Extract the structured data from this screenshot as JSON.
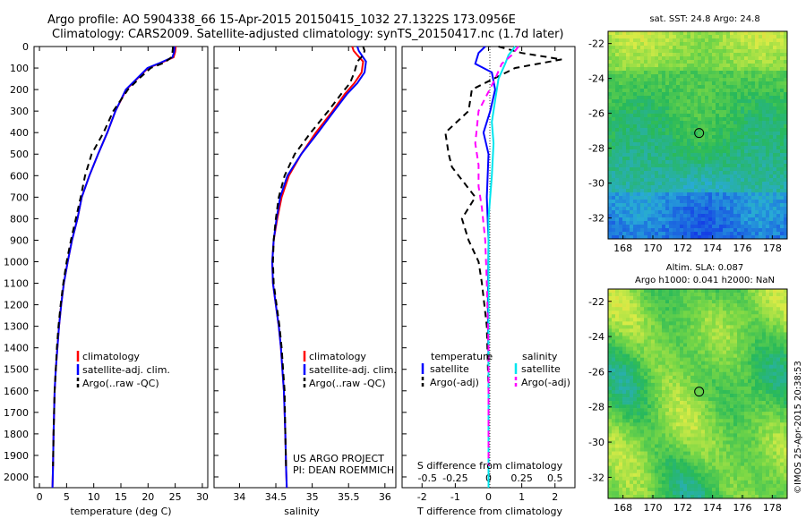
{
  "header": {
    "line1": "Argo profile: AO 5904338_66 15-Apr-2015 20150415_1032 27.1322S 173.0956E",
    "line2": "Climatology: CARS2009. Satellite-adjusted climatology: synTS_20150417.nc (1.7d later)"
  },
  "chart_data": [
    {
      "name": "temperature-panel",
      "type": "line",
      "xlabel": "temperature (deg C)",
      "ylabel": "",
      "xlim": [
        -1,
        31
      ],
      "ylim": [
        2050,
        0
      ],
      "xticks": [
        0,
        5,
        10,
        15,
        20,
        25,
        30
      ],
      "yticks": [
        0,
        100,
        200,
        300,
        400,
        500,
        600,
        700,
        800,
        900,
        1000,
        1100,
        1200,
        1300,
        1400,
        1500,
        1600,
        1700,
        1800,
        1900,
        2000
      ],
      "legend": [
        "climatology",
        "satellite-adj. clim.",
        "Argo(..raw -QC)"
      ],
      "series": [
        {
          "name": "climatology",
          "color": "#ff0000",
          "dash": "",
          "x": [
            25.1,
            25.0,
            24.7,
            22.5,
            20.0,
            18.0,
            16.0,
            14.0,
            12.5,
            10.8,
            9.2,
            7.8,
            7.0,
            6.0,
            5.2,
            4.5,
            4.0,
            3.6,
            3.3,
            3.0,
            2.8,
            2.6,
            2.5,
            2.4
          ],
          "y": [
            0,
            25,
            50,
            75,
            100,
            150,
            200,
            300,
            400,
            500,
            600,
            700,
            800,
            900,
            1000,
            1100,
            1200,
            1300,
            1400,
            1500,
            1600,
            1800,
            1950,
            2050
          ]
        },
        {
          "name": "satellite-adj. clim.",
          "color": "#0000ff",
          "dash": "",
          "x": [
            24.9,
            24.8,
            24.5,
            22.3,
            19.9,
            17.9,
            15.9,
            14.0,
            12.5,
            10.8,
            9.2,
            7.8,
            7.0,
            6.0,
            5.2,
            4.5,
            4.0,
            3.6,
            3.3,
            3.0,
            2.8,
            2.6,
            2.5,
            2.4
          ],
          "y": [
            0,
            25,
            50,
            75,
            100,
            150,
            200,
            300,
            400,
            500,
            600,
            700,
            800,
            900,
            1000,
            1100,
            1200,
            1300,
            1400,
            1500,
            1600,
            1800,
            1950,
            2050
          ]
        },
        {
          "name": "Argo(..raw -QC)",
          "color": "#000000",
          "dash": "7,5",
          "x": [
            24.6,
            24.5,
            24.3,
            23.0,
            20.5,
            18.3,
            16.3,
            13.6,
            11.8,
            9.6,
            8.4,
            7.6,
            6.7,
            5.8,
            5.0,
            4.4,
            3.9,
            3.5,
            3.2,
            3.0,
            2.8,
            2.6,
            2.5
          ],
          "y": [
            0,
            25,
            50,
            75,
            100,
            150,
            200,
            300,
            400,
            500,
            600,
            700,
            800,
            900,
            1000,
            1100,
            1200,
            1300,
            1400,
            1500,
            1600,
            1800,
            1950
          ]
        }
      ]
    },
    {
      "name": "salinity-panel",
      "type": "line",
      "xlabel": "salinity",
      "ylabel": "",
      "xlim": [
        33.65,
        36.15
      ],
      "ylim": [
        2050,
        0
      ],
      "xticks": [
        34,
        34.5,
        35,
        35.5,
        36
      ],
      "legend": [
        "climatology",
        "satellite-adj. clim.",
        "Argo(..raw -QC)"
      ],
      "series": [
        {
          "name": "climatology",
          "color": "#ff0000",
          "dash": "",
          "x": [
            35.55,
            35.57,
            35.62,
            35.7,
            35.68,
            35.58,
            35.45,
            35.28,
            35.05,
            34.85,
            34.68,
            34.58,
            34.52,
            34.47,
            34.45,
            34.46,
            34.5,
            34.54,
            34.57,
            34.59,
            34.61,
            34.63,
            34.64,
            34.65
          ],
          "y": [
            0,
            20,
            40,
            70,
            120,
            170,
            220,
            300,
            400,
            500,
            600,
            700,
            800,
            900,
            1000,
            1100,
            1200,
            1300,
            1400,
            1500,
            1600,
            1800,
            1950,
            2050
          ]
        },
        {
          "name": "satellite-adj. clim.",
          "color": "#0000ff",
          "dash": "",
          "x": [
            35.62,
            35.64,
            35.68,
            35.74,
            35.72,
            35.62,
            35.48,
            35.3,
            35.08,
            34.85,
            34.66,
            34.56,
            34.51,
            34.47,
            34.45,
            34.46,
            34.5,
            34.54,
            34.57,
            34.59,
            34.61,
            34.63,
            34.64,
            34.65
          ],
          "y": [
            0,
            20,
            40,
            70,
            120,
            170,
            220,
            300,
            400,
            500,
            600,
            700,
            800,
            900,
            1000,
            1100,
            1200,
            1300,
            1400,
            1500,
            1600,
            1800,
            1950,
            2050
          ]
        },
        {
          "name": "Argo(..raw -QC)",
          "color": "#000000",
          "dash": "7,5",
          "x": [
            35.7,
            35.72,
            35.7,
            35.62,
            35.58,
            35.52,
            35.4,
            35.22,
            34.98,
            34.76,
            34.62,
            34.54,
            34.5,
            34.47,
            34.46,
            34.47,
            34.51,
            34.55,
            34.58,
            34.6,
            34.62,
            34.63,
            34.64
          ],
          "y": [
            0,
            20,
            40,
            70,
            120,
            170,
            220,
            300,
            400,
            500,
            600,
            700,
            800,
            900,
            1000,
            1100,
            1200,
            1300,
            1400,
            1500,
            1600,
            1800,
            1950
          ]
        }
      ],
      "annotation_line1": "US ARGO PROJECT",
      "annotation_line2": "PI: DEAN ROEMMICH"
    },
    {
      "name": "difference-panel",
      "type": "line",
      "xlabel": "T difference from climatology",
      "xlabel_top": "S difference from climatology",
      "xlim": [
        -2.6,
        2.6
      ],
      "ylim": [
        2050,
        0
      ],
      "xticks": [
        -2,
        -1,
        0,
        1,
        2
      ],
      "sticks_labels": [
        "-0.5",
        "-0.25",
        "0",
        "0.25",
        "0.5"
      ],
      "sticks_values": [
        -2,
        -1,
        0,
        1,
        2
      ],
      "legend_temperature_title": "temperature",
      "legend_salinity_title": "salinity",
      "legend_temperature": [
        "satellite",
        "Argo(-adj)"
      ],
      "legend_salinity": [
        "satellite",
        "Argo(-adj)"
      ],
      "series": [
        {
          "name": "T satellite",
          "color": "#0000ff",
          "dash": "",
          "x": [
            -0.1,
            -0.3,
            -0.4,
            0.1,
            0.2,
            0.05,
            -0.15,
            0.0,
            -0.05,
            0.0,
            -0.02,
            0.0,
            0.0,
            0.0
          ],
          "y": [
            0,
            30,
            80,
            120,
            200,
            300,
            400,
            500,
            700,
            900,
            1200,
            1500,
            1800,
            2050
          ]
        },
        {
          "name": "T Argo(-adj)",
          "color": "#000000",
          "dash": "7,5",
          "x": [
            0.3,
            1.0,
            2.2,
            0.8,
            -0.5,
            -0.6,
            -1.3,
            -1.2,
            -1.1,
            -0.9,
            -0.4,
            -0.8,
            -0.6,
            -0.3,
            -0.2,
            -0.05,
            0.0,
            0.0
          ],
          "y": [
            0,
            30,
            60,
            100,
            200,
            300,
            400,
            500,
            560,
            600,
            700,
            800,
            900,
            1000,
            1100,
            1300,
            1600,
            1950
          ]
        },
        {
          "name": "S satellite",
          "color": "#00e5ee",
          "dash": "",
          "x": [
            0.8,
            0.6,
            0.5,
            0.3,
            0.2,
            0.1,
            0.15,
            0.1,
            0.0,
            0.0,
            0.0,
            0.0
          ],
          "y": [
            0,
            40,
            80,
            150,
            250,
            350,
            450,
            600,
            800,
            1100,
            1500,
            2050
          ]
        },
        {
          "name": "S Argo(-adj)",
          "color": "#ff00ff",
          "dash": "7,5",
          "x": [
            0.9,
            0.7,
            0.4,
            0.2,
            -0.3,
            -0.4,
            -0.3,
            -0.3,
            -0.2,
            -0.1,
            -0.05,
            0.0,
            0.0
          ],
          "y": [
            0,
            40,
            80,
            150,
            300,
            450,
            550,
            650,
            750,
            900,
            1100,
            1400,
            1950
          ]
        }
      ]
    },
    {
      "name": "sst-map",
      "type": "heatmap",
      "title": "sat. SST: 24.8 Argo: 24.8",
      "xticks": [
        "168",
        "170",
        "172",
        "174",
        "176",
        "178"
      ],
      "yticks": [
        "-22",
        "-24",
        "-26",
        "-28",
        "-30",
        "-32"
      ],
      "marker_lon": 173.1,
      "marker_lat": -27.13
    },
    {
      "name": "sla-map",
      "type": "heatmap",
      "title_line1": "Altim. SLA: 0.087",
      "title_line2": "Argo h1000: 0.041 h2000: NaN",
      "xticks": [
        "168",
        "170",
        "172",
        "174",
        "176",
        "178"
      ],
      "yticks": [
        "-22",
        "-24",
        "-26",
        "-28",
        "-30",
        "-32"
      ],
      "marker_lon": 173.1,
      "marker_lat": -27.13
    }
  ],
  "credit": "©IMOS 25-Apr-2015 20:38:53"
}
